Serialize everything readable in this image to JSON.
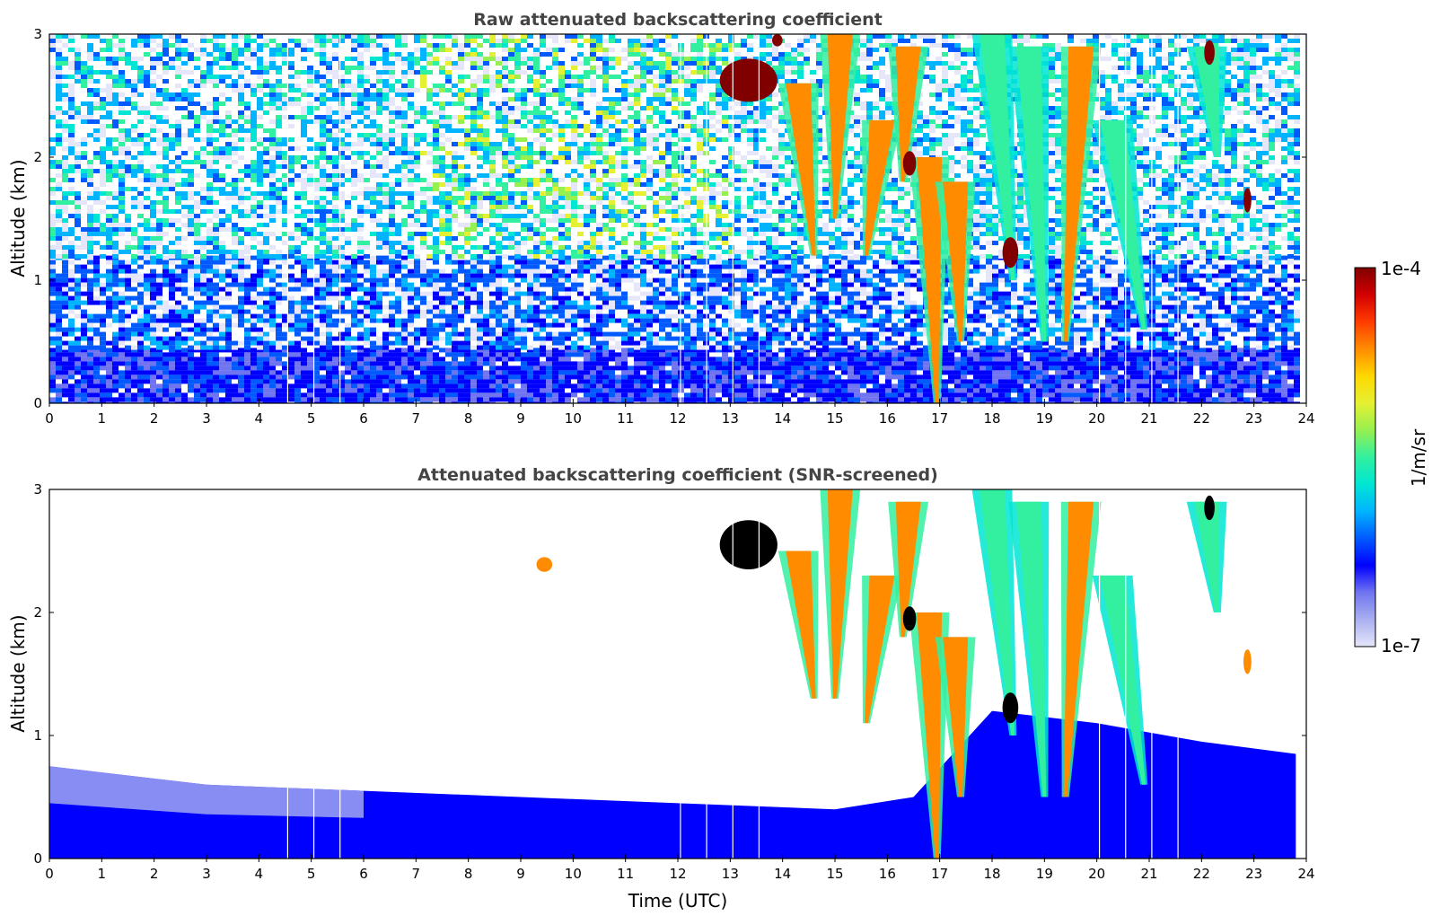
{
  "chart_data": [
    {
      "type": "heatmap",
      "title": "Raw attenuated backscattering coefficient",
      "xlabel": "",
      "ylabel": "Altitude (km)",
      "xlim": [
        0,
        24
      ],
      "ylim": [
        0,
        3
      ],
      "x_ticks": [
        "0",
        "1",
        "2",
        "3",
        "4",
        "5",
        "6",
        "7",
        "8",
        "9",
        "10",
        "11",
        "12",
        "13",
        "14",
        "15",
        "16",
        "17",
        "18",
        "19",
        "20",
        "21",
        "22",
        "23",
        "24"
      ],
      "y_ticks": [
        "0",
        "1",
        "2",
        "3"
      ],
      "data_end_time": 23.8,
      "noise_background": [
        {
          "altitude_km": [
            0.0,
            0.4
          ],
          "level": "dense low (deep blue)"
        },
        {
          "altitude_km": [
            0.4,
            1.2
          ],
          "level": "blue"
        },
        {
          "altitude_km": [
            1.2,
            3.0
          ],
          "level": "speckled cyan/green noise, greener at midday"
        }
      ],
      "data_gaps_utc": [
        4.55,
        5.05,
        5.55,
        12.05,
        12.55,
        13.05,
        13.55,
        20.05,
        20.55,
        21.05,
        21.55
      ],
      "features": [
        {
          "kind": "cloud-blob",
          "time": [
            12.8,
            13.9
          ],
          "altitude_km": [
            2.45,
            2.8
          ],
          "level": "max"
        },
        {
          "kind": "cloud-blob",
          "time": [
            13.8,
            14.0
          ],
          "altitude_km": [
            2.9,
            3.0
          ],
          "level": "max"
        },
        {
          "kind": "fallstreak",
          "time_top": 14.3,
          "time_bottom": 14.6,
          "altitude_top": 2.6,
          "altitude_bottom": 1.2,
          "level": "high"
        },
        {
          "kind": "fallstreak",
          "time_top": 15.1,
          "time_bottom": 15.0,
          "altitude_top": 3.0,
          "altitude_bottom": 1.5,
          "level": "high"
        },
        {
          "kind": "fallstreak",
          "time_top": 15.9,
          "time_bottom": 15.6,
          "altitude_top": 2.3,
          "altitude_bottom": 1.2,
          "level": "high"
        },
        {
          "kind": "fallstreak",
          "time_top": 16.4,
          "time_bottom": 16.3,
          "altitude_top": 2.9,
          "altitude_bottom": 1.8,
          "level": "high"
        },
        {
          "kind": "fallstreak",
          "time_top": 16.8,
          "time_bottom": 16.95,
          "altitude_top": 2.0,
          "altitude_bottom": 0.0,
          "level": "high"
        },
        {
          "kind": "fallstreak",
          "time_top": 17.3,
          "time_bottom": 17.4,
          "altitude_top": 1.8,
          "altitude_bottom": 0.5,
          "level": "high"
        },
        {
          "kind": "fallstreak",
          "time_top": 18.0,
          "time_bottom": 18.4,
          "altitude_top": 3.0,
          "altitude_bottom": 1.0,
          "level": "mid"
        },
        {
          "kind": "fallstreak",
          "time_top": 18.7,
          "time_bottom": 19.0,
          "altitude_top": 2.9,
          "altitude_bottom": 0.5,
          "level": "mid"
        },
        {
          "kind": "fallstreak",
          "time_top": 19.7,
          "time_bottom": 19.4,
          "altitude_top": 2.9,
          "altitude_bottom": 0.5,
          "level": "high"
        },
        {
          "kind": "fallstreak",
          "time_top": 20.3,
          "time_bottom": 20.9,
          "altitude_top": 2.3,
          "altitude_bottom": 0.6,
          "level": "mid"
        },
        {
          "kind": "fallstreak",
          "time_top": 22.1,
          "time_bottom": 22.3,
          "altitude_top": 2.9,
          "altitude_bottom": 2.0,
          "level": "mid"
        },
        {
          "kind": "cloud-blob",
          "time": [
            18.2,
            18.5
          ],
          "altitude_km": [
            1.1,
            1.35
          ],
          "level": "max"
        },
        {
          "kind": "cloud-blob",
          "time": [
            16.3,
            16.55
          ],
          "altitude_km": [
            1.85,
            2.05
          ],
          "level": "max"
        },
        {
          "kind": "cloud-blob",
          "time": [
            22.05,
            22.25
          ],
          "altitude_km": [
            2.75,
            2.95
          ],
          "level": "max"
        },
        {
          "kind": "cloud-blob",
          "time": [
            22.8,
            22.95
          ],
          "altitude_km": [
            1.55,
            1.75
          ],
          "level": "max"
        }
      ]
    },
    {
      "type": "heatmap",
      "title": "Attenuated backscattering coefficient (SNR-screened)",
      "xlabel": "Time (UTC)",
      "ylabel": "Altitude (km)",
      "xlim": [
        0,
        24
      ],
      "ylim": [
        0,
        3
      ],
      "x_ticks": [
        "0",
        "1",
        "2",
        "3",
        "4",
        "5",
        "6",
        "7",
        "8",
        "9",
        "10",
        "11",
        "12",
        "13",
        "14",
        "15",
        "16",
        "17",
        "18",
        "19",
        "20",
        "21",
        "22",
        "23",
        "24"
      ],
      "y_ticks": [
        "0",
        "1",
        "2",
        "3"
      ],
      "data_end_time": 23.8,
      "boundary_layer_top_km": [
        {
          "time": 0,
          "top": 0.75
        },
        {
          "time": 3,
          "top": 0.6
        },
        {
          "time": 6,
          "top": 0.55
        },
        {
          "time": 9,
          "top": 0.5
        },
        {
          "time": 12,
          "top": 0.45
        },
        {
          "time": 15,
          "top": 0.4
        },
        {
          "time": 16.5,
          "top": 0.5
        },
        {
          "time": 18,
          "top": 1.2
        },
        {
          "time": 20,
          "top": 1.1
        },
        {
          "time": 22,
          "top": 0.95
        },
        {
          "time": 23.8,
          "top": 0.85
        }
      ],
      "data_gaps_utc": [
        4.55,
        5.05,
        5.55,
        12.05,
        12.55,
        13.05,
        13.55,
        20.05,
        20.55,
        21.05,
        21.55
      ],
      "features": [
        {
          "kind": "cloud-blob",
          "time": [
            12.8,
            13.9
          ],
          "altitude_km": [
            2.35,
            2.75
          ],
          "level": "saturated"
        },
        {
          "kind": "cloud-blob",
          "time": [
            9.3,
            9.6
          ],
          "altitude_km": [
            2.33,
            2.45
          ],
          "level": "high"
        },
        {
          "kind": "fallstreak",
          "time_top": 14.3,
          "time_bottom": 14.6,
          "altitude_top": 2.5,
          "altitude_bottom": 1.3,
          "level": "high"
        },
        {
          "kind": "fallstreak",
          "time_top": 15.1,
          "time_bottom": 15.0,
          "altitude_top": 3.0,
          "altitude_bottom": 1.3,
          "level": "high"
        },
        {
          "kind": "fallstreak",
          "time_top": 15.9,
          "time_bottom": 15.6,
          "altitude_top": 2.3,
          "altitude_bottom": 1.1,
          "level": "high"
        },
        {
          "kind": "fallstreak",
          "time_top": 16.4,
          "time_bottom": 16.3,
          "altitude_top": 2.9,
          "altitude_bottom": 1.8,
          "level": "high"
        },
        {
          "kind": "fallstreak",
          "time_top": 16.8,
          "time_bottom": 16.95,
          "altitude_top": 2.0,
          "altitude_bottom": 0.0,
          "level": "high"
        },
        {
          "kind": "fallstreak",
          "time_top": 17.3,
          "time_bottom": 17.4,
          "altitude_top": 1.8,
          "altitude_bottom": 0.5,
          "level": "high"
        },
        {
          "kind": "fallstreak",
          "time_top": 18.0,
          "time_bottom": 18.4,
          "altitude_top": 3.0,
          "altitude_bottom": 1.0,
          "level": "mid"
        },
        {
          "kind": "fallstreak",
          "time_top": 18.7,
          "time_bottom": 19.0,
          "altitude_top": 2.9,
          "altitude_bottom": 0.5,
          "level": "mid"
        },
        {
          "kind": "fallstreak",
          "time_top": 19.7,
          "time_bottom": 19.4,
          "altitude_top": 2.9,
          "altitude_bottom": 0.5,
          "level": "high"
        },
        {
          "kind": "fallstreak",
          "time_top": 20.3,
          "time_bottom": 20.9,
          "altitude_top": 2.3,
          "altitude_bottom": 0.6,
          "level": "mid"
        },
        {
          "kind": "fallstreak",
          "time_top": 22.1,
          "time_bottom": 22.3,
          "altitude_top": 2.9,
          "altitude_bottom": 2.0,
          "level": "mid"
        },
        {
          "kind": "cloud-blob",
          "time": [
            18.2,
            18.5
          ],
          "altitude_km": [
            1.1,
            1.35
          ],
          "level": "saturated"
        },
        {
          "kind": "cloud-blob",
          "time": [
            16.3,
            16.55
          ],
          "altitude_km": [
            1.85,
            2.05
          ],
          "level": "saturated"
        },
        {
          "kind": "cloud-blob",
          "time": [
            22.05,
            22.25
          ],
          "altitude_km": [
            2.75,
            2.95
          ],
          "level": "saturated"
        },
        {
          "kind": "cloud-blob",
          "time": [
            22.8,
            22.95
          ],
          "altitude_km": [
            1.5,
            1.7
          ],
          "level": "high"
        }
      ]
    }
  ],
  "colorbar": {
    "label": "1/m/sr",
    "max_label": "1e-4",
    "min_label": "1e-7",
    "colors": [
      "#e6e6fa",
      "#aab0f0",
      "#7074f0",
      "#0000ff",
      "#005aff",
      "#00b4ff",
      "#00e6d2",
      "#32f0a0",
      "#96f050",
      "#e6f032",
      "#ffd700",
      "#ff8c00",
      "#ff3c00",
      "#d20000",
      "#800000"
    ]
  }
}
